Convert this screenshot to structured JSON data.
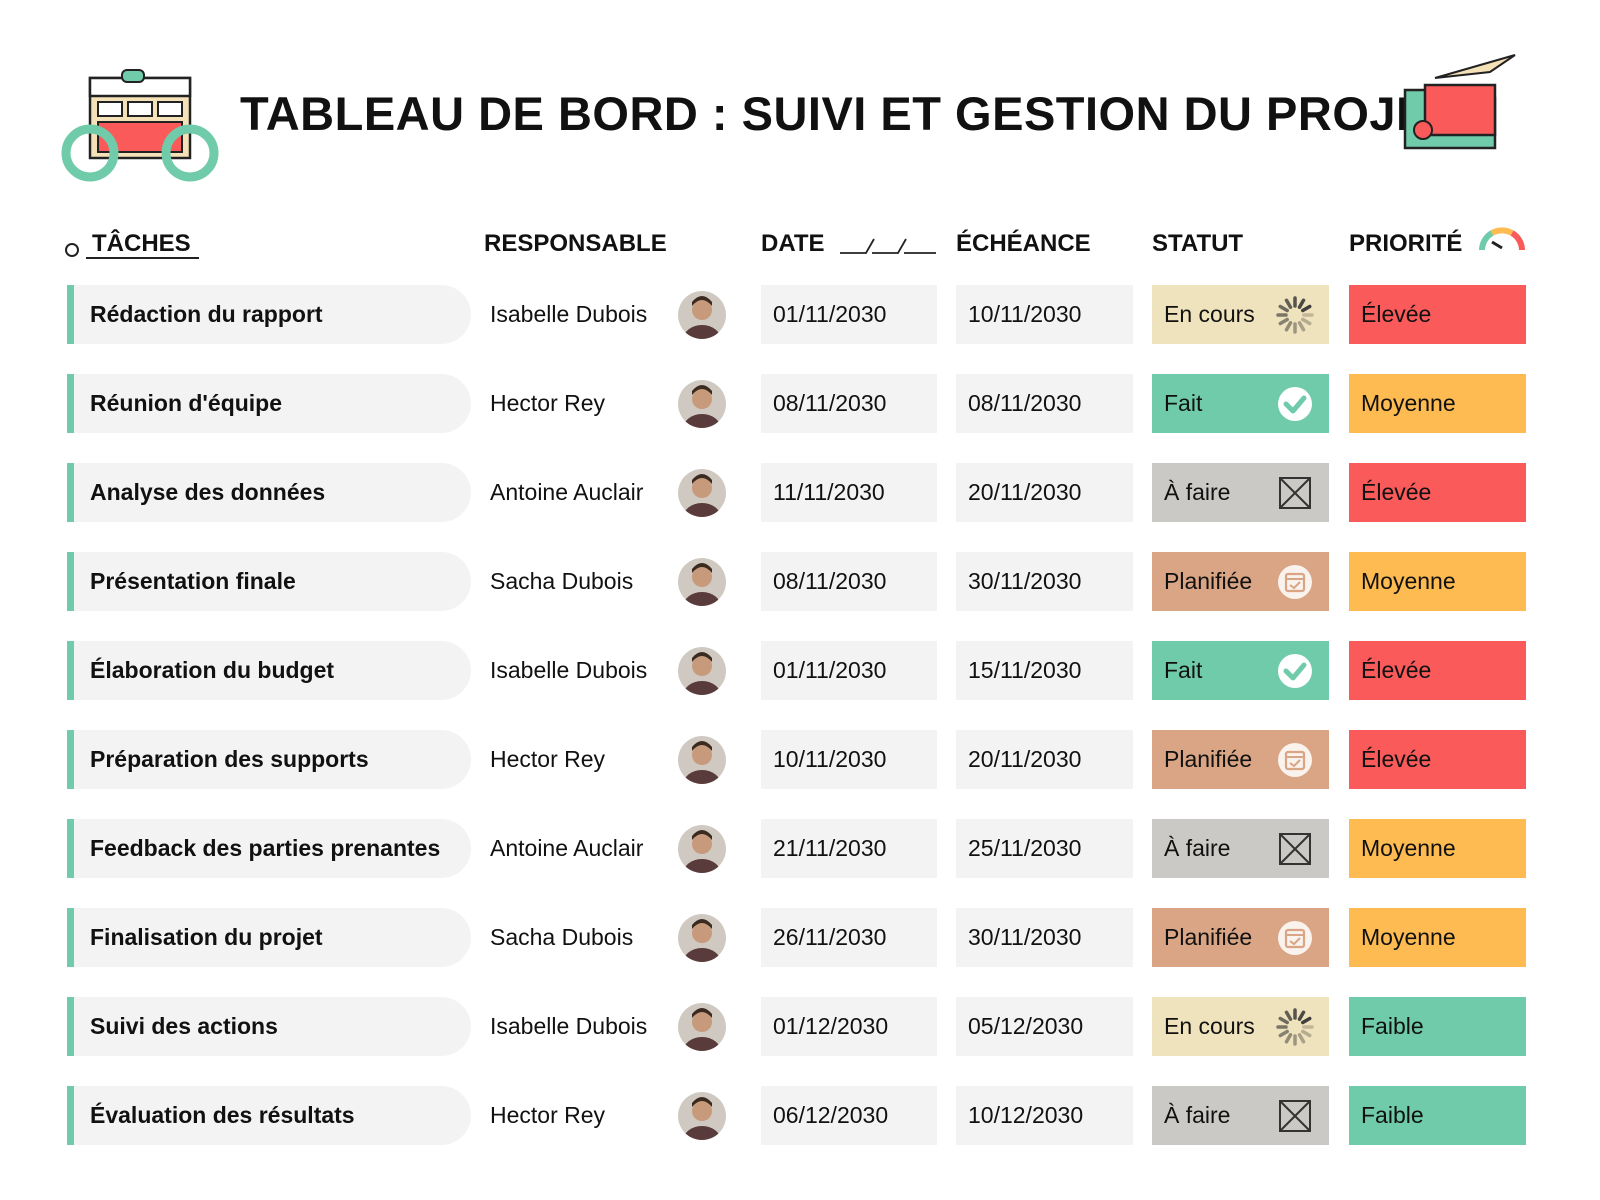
{
  "header": {
    "title": "TABLEAU DE BORD : SUIVI ET GESTION DU PROJET"
  },
  "table": {
    "headers": [
      "TÂCHES",
      "RESPONSABLE",
      "DATE",
      "ÉCHÉANCE",
      "STATUT",
      "PRIORITÉ"
    ],
    "rows": [
      {
        "task": "Rédaction du rapport",
        "owner": "Isabelle Dubois",
        "date": "01/11/2030",
        "due": "10/11/2030",
        "status": "En cours",
        "status_color": "#efe3bd",
        "status_icon": "spinner",
        "priority": "Élevée",
        "priority_color": "#fa5a5a"
      },
      {
        "task": "Réunion d'équipe",
        "owner": "Hector Rey",
        "date": "08/11/2030",
        "due": "08/11/2030",
        "status": "Fait",
        "status_color": "#6fcba9",
        "status_icon": "check",
        "priority": "Moyenne",
        "priority_color": "#fdbb52"
      },
      {
        "task": "Analyse des données",
        "owner": "Antoine Auclair",
        "date": "11/11/2030",
        "due": "20/11/2030",
        "status": "À faire",
        "status_color": "#cbc9c5",
        "status_icon": "cross",
        "priority": "Élevée",
        "priority_color": "#fa5a5a"
      },
      {
        "task": "Présentation finale",
        "owner": "Sacha Dubois",
        "date": "08/11/2030",
        "due": "30/11/2030",
        "status": "Planifiée",
        "status_color": "#d9a584",
        "status_icon": "calendar",
        "priority": "Moyenne",
        "priority_color": "#fdbb52"
      },
      {
        "task": "Élaboration du budget",
        "owner": "Isabelle Dubois",
        "date": "01/11/2030",
        "due": "15/11/2030",
        "status": "Fait",
        "status_color": "#6fcba9",
        "status_icon": "check",
        "priority": "Élevée",
        "priority_color": "#fa5a5a"
      },
      {
        "task": "Préparation des supports",
        "owner": "Hector Rey",
        "date": "10/11/2030",
        "due": "20/11/2030",
        "status": "Planifiée",
        "status_color": "#d9a584",
        "status_icon": "calendar",
        "priority": "Élevée",
        "priority_color": "#fa5a5a"
      },
      {
        "task": "Feedback des parties prenantes",
        "owner": "Antoine Auclair",
        "date": "21/11/2030",
        "due": "25/11/2030",
        "status": "À faire",
        "status_color": "#cbc9c5",
        "status_icon": "cross",
        "priority": "Moyenne",
        "priority_color": "#fdbb52"
      },
      {
        "task": "Finalisation du projet",
        "owner": "Sacha Dubois",
        "date": "26/11/2030",
        "due": "30/11/2030",
        "status": "Planifiée",
        "status_color": "#d9a584",
        "status_icon": "calendar",
        "priority": "Moyenne",
        "priority_color": "#fdbb52"
      },
      {
        "task": "Suivi des actions",
        "owner": "Isabelle Dubois",
        "date": "01/12/2030",
        "due": "05/12/2030",
        "status": "En cours",
        "status_color": "#efe3bd",
        "status_icon": "spinner",
        "priority": "Faible",
        "priority_color": "#6fcba9"
      },
      {
        "task": "Évaluation des résultats",
        "owner": "Hector Rey",
        "date": "06/12/2030",
        "due": "10/12/2030",
        "status": "À faire",
        "status_color": "#cbc9c5",
        "status_icon": "cross",
        "priority": "Faible",
        "priority_color": "#6fcba9"
      }
    ]
  }
}
